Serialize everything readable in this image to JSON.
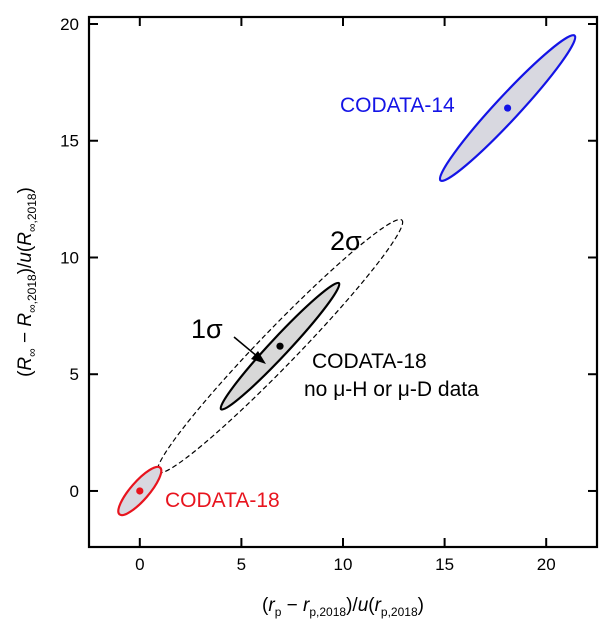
{
  "chart_data": {
    "type": "scatter",
    "xlabel": {
      "open": "(",
      "var1": "r",
      "sub1": "p",
      "minus": " − ",
      "var2": "r",
      "sub2": "p,2018",
      "mid": ")/",
      "u": "u",
      "open2": "(",
      "var3": "r",
      "sub3": "p,2018",
      "close": ")"
    },
    "ylabel": {
      "open": "(",
      "var1": "R",
      "sub1": "∞",
      "minus": " − ",
      "var2": "R",
      "sub2": "∞,2018",
      "mid": ")/",
      "u": "u",
      "open2": "(",
      "var3": "R",
      "sub3": "∞,2018",
      "close": ")"
    },
    "xlim": [
      -2.5,
      22.5
    ],
    "ylim": [
      -2.4,
      20.3
    ],
    "xticks": [
      0,
      5,
      10,
      15,
      20
    ],
    "yticks": [
      0,
      5,
      10,
      15,
      20
    ],
    "series": [
      {
        "name": "CODATA-18",
        "color": "#e8141e",
        "fill": "#d8d8e0",
        "center": [
          0,
          0
        ],
        "ellipse_1sigma": {
          "endpoints": [
            [
              -1.0,
              -1.0
            ],
            [
              1.0,
              1.0
            ]
          ],
          "half_width": 0.42
        },
        "label": "CODATA-18"
      },
      {
        "name": "CODATA-18 no μ-H or μ-D data",
        "color": "#000000",
        "fill": "#d8d8d8",
        "center": [
          6.9,
          6.2
        ],
        "ellipse_1sigma": {
          "endpoints": [
            [
              4.0,
              3.5
            ],
            [
              9.8,
              8.9
            ]
          ],
          "half_width": 0.42
        },
        "ellipse_2sigma": {
          "endpoints": [
            [
              0.9,
              0.8
            ],
            [
              12.9,
              11.6
            ]
          ],
          "half_width": 0.84
        },
        "label_line1": "CODATA-18",
        "label_line2": "no μ-H or μ-D data"
      },
      {
        "name": "CODATA-14",
        "color": "#1414e6",
        "fill": "#d8d8e0",
        "center": [
          18.1,
          16.4
        ],
        "ellipse_1sigma": {
          "endpoints": [
            [
              14.8,
              13.3
            ],
            [
              21.4,
              19.5
            ]
          ],
          "half_width": 0.55
        },
        "label": "CODATA-14"
      }
    ],
    "annotations": {
      "one_sigma": "1σ",
      "two_sigma": "2σ"
    }
  }
}
